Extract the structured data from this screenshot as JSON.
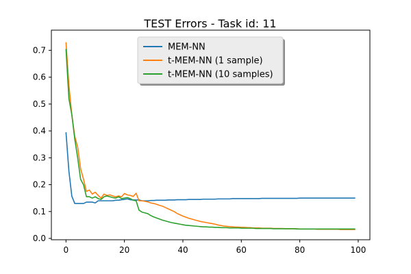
{
  "chart_data": {
    "type": "line",
    "title": "TEST Errors - Task id: 11",
    "xlabel": "",
    "ylabel": "",
    "xlim": [
      -5,
      104
    ],
    "ylim": [
      -0.005,
      0.775
    ],
    "xticks": [
      0,
      20,
      40,
      60,
      80,
      100
    ],
    "yticks": [
      0.0,
      0.1,
      0.2,
      0.3,
      0.4,
      0.5,
      0.6,
      0.7
    ],
    "xtick_labels": [
      "0",
      "20",
      "40",
      "60",
      "80",
      "100"
    ],
    "ytick_labels": [
      "0.0",
      "0.1",
      "0.2",
      "0.3",
      "0.4",
      "0.5",
      "0.6",
      "0.7"
    ],
    "grid": false,
    "legend_position": "upper-center",
    "x": [
      0,
      1,
      2,
      3,
      4,
      5,
      6,
      7,
      8,
      9,
      10,
      11,
      12,
      13,
      14,
      15,
      16,
      17,
      18,
      19,
      20,
      21,
      22,
      23,
      24,
      25,
      26,
      27,
      28,
      29,
      30,
      31,
      32,
      33,
      34,
      35,
      36,
      37,
      38,
      39,
      40,
      41,
      42,
      43,
      44,
      45,
      46,
      47,
      48,
      49,
      50,
      51,
      52,
      53,
      54,
      55,
      56,
      57,
      58,
      59,
      60,
      61,
      62,
      63,
      64,
      65,
      66,
      67,
      68,
      69,
      70,
      71,
      72,
      73,
      74,
      75,
      76,
      77,
      78,
      79,
      80,
      81,
      82,
      83,
      84,
      85,
      86,
      87,
      88,
      89,
      90,
      91,
      92,
      93,
      94,
      95,
      96,
      97,
      98,
      99
    ],
    "series": [
      {
        "name": "MEM-NN",
        "color": "#1f77b4",
        "values": [
          0.395,
          0.25,
          0.157,
          0.13,
          0.13,
          0.13,
          0.13,
          0.135,
          0.135,
          0.135,
          0.132,
          0.14,
          0.14,
          0.14,
          0.14,
          0.14,
          0.14,
          0.142,
          0.142,
          0.144,
          0.145,
          0.147,
          0.144,
          0.143,
          0.143,
          0.143,
          0.14,
          0.14,
          0.14,
          0.141,
          0.141,
          0.142,
          0.142,
          0.142,
          0.142,
          0.143,
          0.143,
          0.143,
          0.144,
          0.144,
          0.144,
          0.144,
          0.145,
          0.145,
          0.145,
          0.145,
          0.145,
          0.146,
          0.146,
          0.146,
          0.146,
          0.146,
          0.147,
          0.147,
          0.147,
          0.147,
          0.147,
          0.148,
          0.148,
          0.148,
          0.148,
          0.148,
          0.148,
          0.148,
          0.148,
          0.148,
          0.148,
          0.149,
          0.149,
          0.149,
          0.149,
          0.149,
          0.149,
          0.149,
          0.149,
          0.149,
          0.149,
          0.149,
          0.149,
          0.149,
          0.15,
          0.15,
          0.15,
          0.15,
          0.15,
          0.15,
          0.15,
          0.15,
          0.15,
          0.15,
          0.15,
          0.15,
          0.15,
          0.15,
          0.15,
          0.15,
          0.15,
          0.15,
          0.15,
          0.15
        ]
      },
      {
        "name": "t-MEM-NN (1 sample)",
        "color": "#ff7f0e",
        "values": [
          0.73,
          0.57,
          0.46,
          0.38,
          0.34,
          0.26,
          0.22,
          0.175,
          0.18,
          0.165,
          0.172,
          0.16,
          0.15,
          0.165,
          0.16,
          0.162,
          0.158,
          0.155,
          0.158,
          0.155,
          0.167,
          0.162,
          0.16,
          0.156,
          0.168,
          0.14,
          0.14,
          0.138,
          0.136,
          0.132,
          0.13,
          0.127,
          0.123,
          0.12,
          0.115,
          0.11,
          0.105,
          0.1,
          0.093,
          0.088,
          0.083,
          0.079,
          0.075,
          0.072,
          0.069,
          0.066,
          0.063,
          0.061,
          0.059,
          0.057,
          0.055,
          0.053,
          0.05,
          0.048,
          0.046,
          0.045,
          0.044,
          0.043,
          0.042,
          0.042,
          0.041,
          0.041,
          0.04,
          0.04,
          0.039,
          0.039,
          0.039,
          0.038,
          0.038,
          0.038,
          0.038,
          0.037,
          0.037,
          0.037,
          0.037,
          0.036,
          0.036,
          0.036,
          0.036,
          0.036,
          0.035,
          0.035,
          0.035,
          0.035,
          0.035,
          0.035,
          0.034,
          0.034,
          0.034,
          0.034,
          0.034,
          0.034,
          0.034,
          0.034,
          0.033,
          0.033,
          0.033,
          0.033,
          0.033,
          0.033
        ]
      },
      {
        "name": "t-MEM-NN (10 samples)",
        "color": "#2ca02c",
        "values": [
          0.705,
          0.52,
          0.46,
          0.37,
          0.3,
          0.22,
          0.2,
          0.155,
          0.155,
          0.15,
          0.155,
          0.148,
          0.145,
          0.155,
          0.158,
          0.155,
          0.152,
          0.15,
          0.155,
          0.148,
          0.15,
          0.152,
          0.148,
          0.142,
          0.14,
          0.105,
          0.098,
          0.095,
          0.092,
          0.085,
          0.08,
          0.076,
          0.072,
          0.068,
          0.065,
          0.062,
          0.059,
          0.057,
          0.055,
          0.053,
          0.051,
          0.049,
          0.048,
          0.047,
          0.046,
          0.045,
          0.044,
          0.043,
          0.043,
          0.042,
          0.042,
          0.041,
          0.041,
          0.04,
          0.04,
          0.04,
          0.039,
          0.039,
          0.039,
          0.039,
          0.038,
          0.038,
          0.038,
          0.038,
          0.038,
          0.037,
          0.037,
          0.037,
          0.037,
          0.037,
          0.037,
          0.036,
          0.036,
          0.036,
          0.036,
          0.036,
          0.036,
          0.036,
          0.036,
          0.035,
          0.035,
          0.035,
          0.035,
          0.035,
          0.035,
          0.035,
          0.035,
          0.035,
          0.035,
          0.035,
          0.035,
          0.035,
          0.035,
          0.035,
          0.035,
          0.035,
          0.035,
          0.035,
          0.035,
          0.035
        ]
      }
    ]
  }
}
